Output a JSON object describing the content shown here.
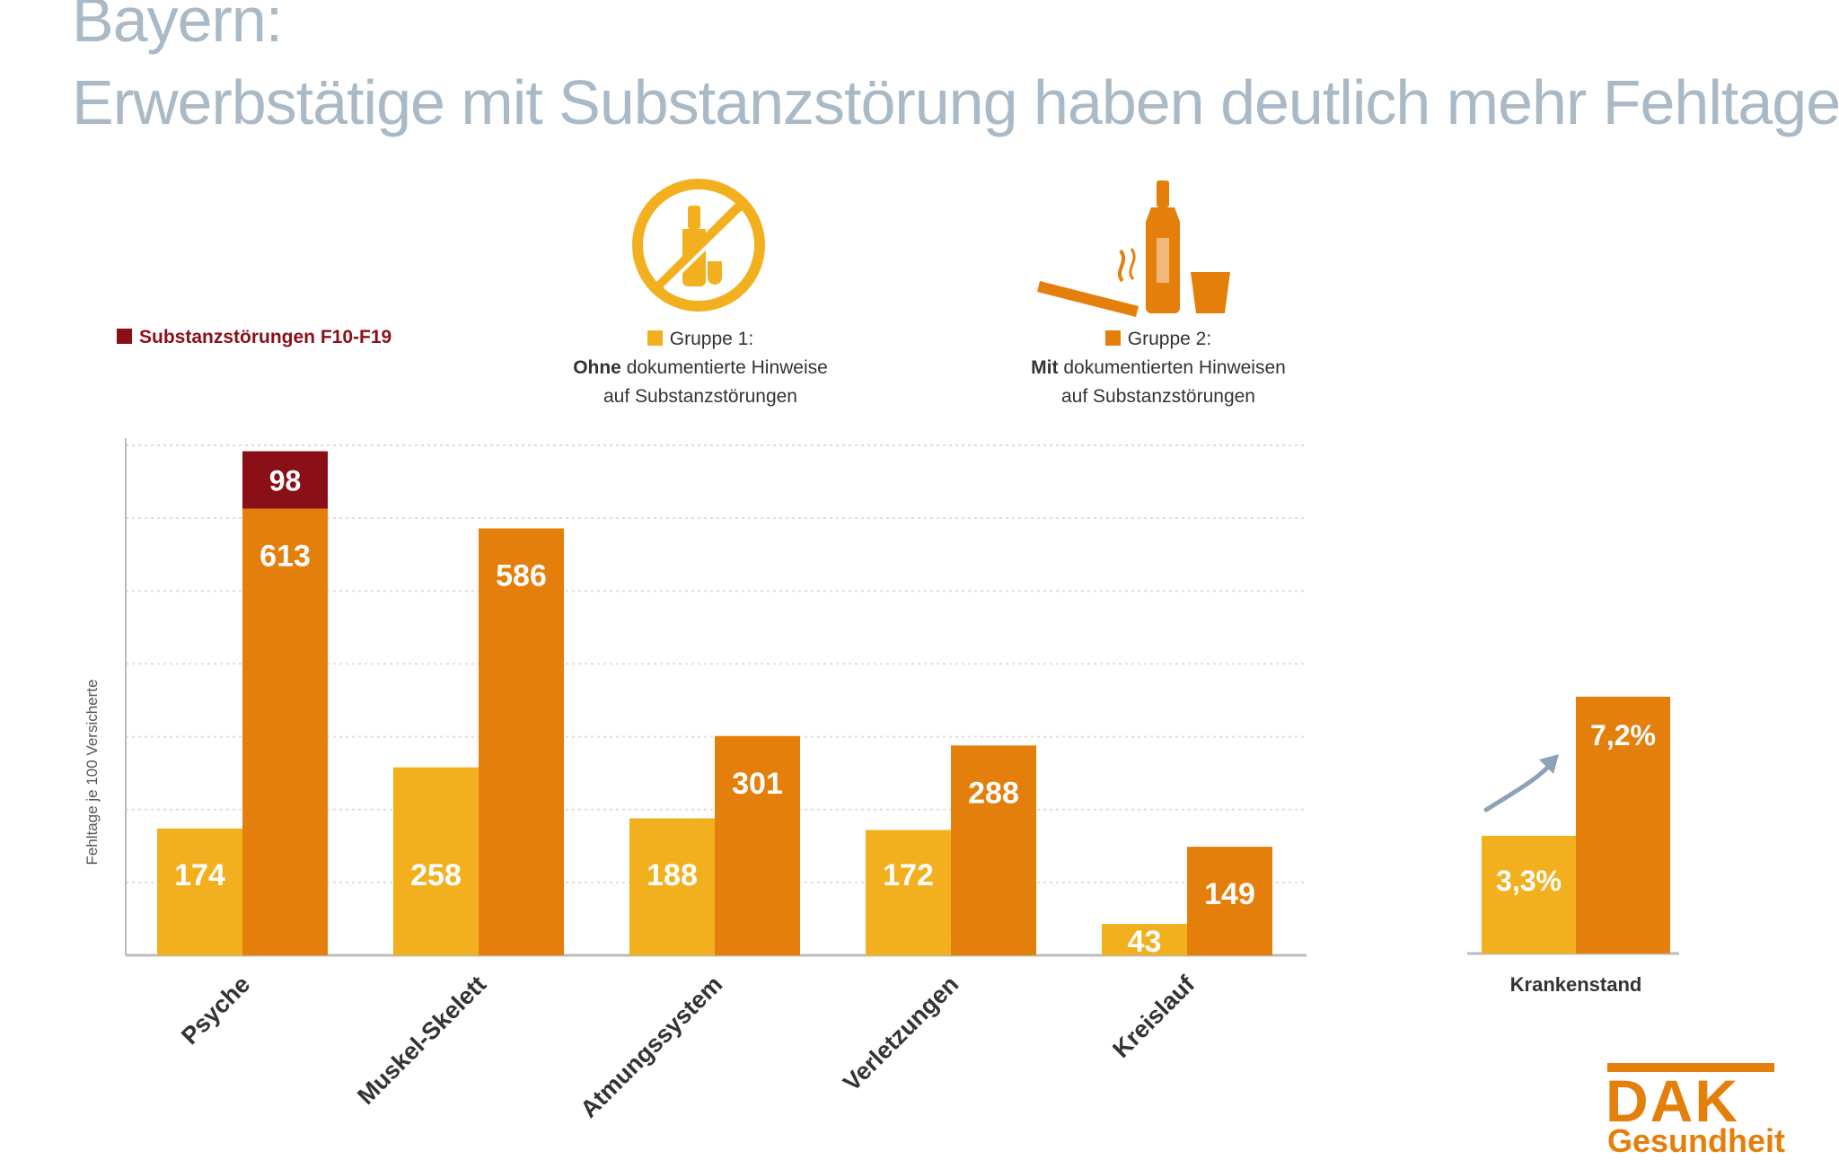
{
  "title": {
    "line1": "Bayern:",
    "line2": "Erwerbstätige mit Substanzstörung haben deutlich mehr Fehltage"
  },
  "legend": {
    "substance": {
      "label": "Substanzstörungen F10-F19",
      "color": "#8b0f17"
    },
    "group1": {
      "label": "Gruppe 1:",
      "bold": "Ohne",
      "line2_rest": "dokumentierte Hinweise",
      "line3": "auf Substanzstörungen",
      "color": "#f2b01e"
    },
    "group2": {
      "label": "Gruppe 2:",
      "bold": "Mit",
      "line2_rest": "dokumentierten Hinweisen",
      "line3": "auf Substanzstörungen",
      "color": "#e57f0b"
    }
  },
  "icons": {
    "no_substance": "no-alcohol-icon",
    "substance": "cigarette-bottle-glass-icon"
  },
  "colors": {
    "icon": "#f2b01e",
    "icon2": "#e57f0b",
    "grid": "#dddddd",
    "axis": "#bbbbbb",
    "trend_arrow": "#8aa3b8"
  },
  "chart_data": [
    {
      "type": "bar",
      "title": "Erwerbstätige mit Substanzstörung haben deutlich mehr Fehltage",
      "xlabel": "",
      "ylabel": "Fehltage je 100 Versicherte",
      "ylim": [
        0,
        700
      ],
      "grid": true,
      "categories": [
        "Psyche",
        "Muskel-Skelett",
        "Atmungssystem",
        "Verletzungen",
        "Kreislauf"
      ],
      "series": [
        {
          "name": "Gruppe 1: Ohne dokumentierte Hinweise auf Substanzstörungen",
          "values": [
            174,
            258,
            188,
            172,
            43
          ],
          "labels": [
            "174",
            "258",
            "188",
            "172",
            "43"
          ]
        },
        {
          "name": "Gruppe 2: Mit dokumentierten Hinweisen auf Substanzstörungen",
          "values": [
            613,
            586,
            301,
            288,
            149
          ],
          "labels": [
            "613",
            "586",
            "301",
            "288",
            "149"
          ]
        },
        {
          "name": "Substanzstörungen F10-F19",
          "stacked_on": "Gruppe 2",
          "values": [
            98,
            null,
            null,
            null,
            null
          ],
          "labels": [
            "98",
            "",
            "",
            "",
            ""
          ]
        }
      ]
    },
    {
      "type": "bar",
      "categories": [
        "Krankenstand"
      ],
      "series": [
        {
          "name": "Gruppe 1",
          "values": [
            3.3
          ],
          "labels": [
            "3,3%"
          ]
        },
        {
          "name": "Gruppe 2",
          "values": [
            7.2
          ],
          "labels": [
            "7,2%"
          ]
        }
      ],
      "ylim": [
        0,
        8.5
      ]
    }
  ],
  "logo": {
    "brand": "DAK",
    "sub": "Gesundheit"
  }
}
